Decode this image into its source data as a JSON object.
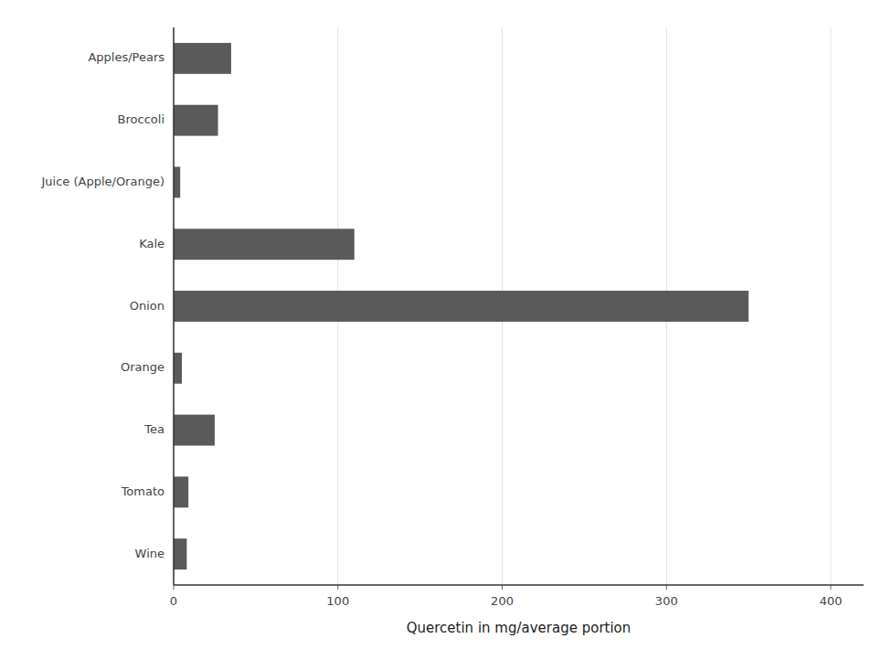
{
  "chart_data": {
    "type": "bar",
    "orientation": "horizontal",
    "categories": [
      "Apples/Pears",
      "Broccoli",
      "Juice (Apple/Orange)",
      "Kale",
      "Onion",
      "Orange",
      "Tea",
      "Tomato",
      "Wine"
    ],
    "values": [
      35,
      27,
      4,
      110,
      350,
      5,
      25,
      9,
      8
    ],
    "color": "#5a5a5a",
    "xlabel": "Quercetin in mg/average portion",
    "xlim": [
      0,
      420
    ],
    "xticks": [
      0,
      100,
      200,
      300,
      400
    ],
    "grid": true
  }
}
